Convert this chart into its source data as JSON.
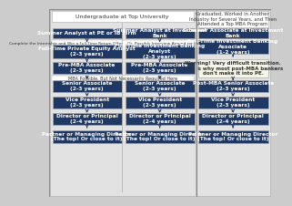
{
  "bg_outer": "#cccccc",
  "bg_panel_left": "#e2e2e2",
  "bg_panel_right": "#e2e2e2",
  "box_dark": "#1f3864",
  "box_warn": "#f5f5e8",
  "header_top_left": "Undergraduate at Top University",
  "header_top_right": "Graduated, Worked in Another\nIndustry for Several Years, and Then\nAttended a Top MBA Program",
  "banner1": "Complete the Internship and Win a Full-Time Return Offer – Or, Possibly Interview Around for Other Full-Time Roles",
  "banner2": "MBA Possible, But Not Necessarily Required Here",
  "col1_boxes": [
    "Summer Analyst at PE or IB Firm",
    "Full-Time Private Equity Analyst\n(2-3 years)",
    "Pre-MBA Associate\n(2-3 years)",
    "Senior Associate\n(2-3 years)",
    "Vice President\n(2-3 years)",
    "Director or Principal\n(2-4 years)",
    "Partner or Managing Director\n(The top! Or close to it)"
  ],
  "col2_boxes": [
    "Summer Analyst at Investment\nBank",
    "Full-Time Investment Banking\nAnalyst\n(2-3 years)",
    "Pre-MBA Associate\n(2-3 years)",
    "Senior Associate\n(2-3 years)",
    "Vice President\n(2-3 years)",
    "Director or Principal\n(2-4 years)",
    "Partner or Managing Director\n(The top! Or close to it)"
  ],
  "col3_box1": "Summer Associate at Investment\nBank",
  "col3_box2": "Full-Time Investment Banking\nAssociate\n(1-2 years)",
  "col3_warn": "Warning! Very difficult transition.\nThis is why most post-MBA bankers\ndon't make it into PE.",
  "col3_boxes_bottom": [
    "Post-MBA Senior Associate\n(2-3 years)",
    "Vice President\n(2-3 years)",
    "Director or Principal\n(2-4 years)",
    "Partner or Managing Director\n(The top! Or close to it)"
  ]
}
